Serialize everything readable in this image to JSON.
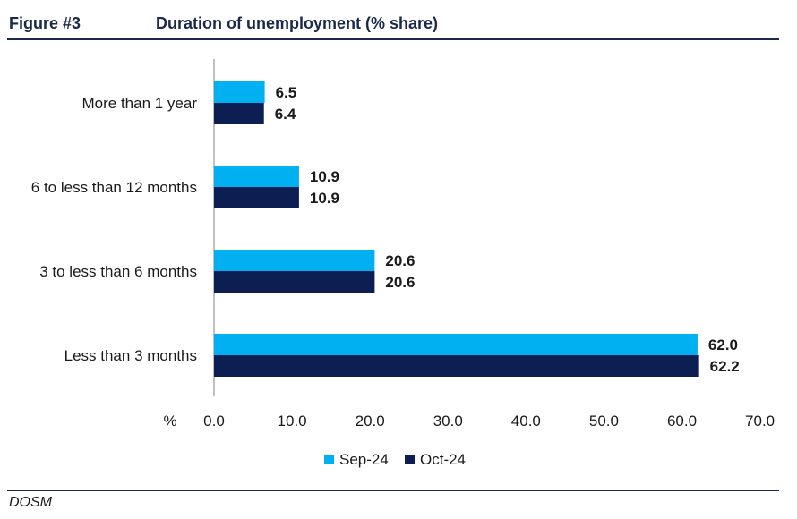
{
  "figure_label": "Figure #3",
  "source": "DOSM",
  "chart_data": {
    "type": "bar",
    "orientation": "horizontal",
    "title": "Duration of unemployment (% share)",
    "xlabel": "%",
    "categories": [
      "More than 1 year",
      "6 to less than 12 months",
      "3 to less than 6 months",
      "Less than 3 months"
    ],
    "series": [
      {
        "name": "Sep-24",
        "color": "#00b0f0",
        "values": [
          6.5,
          10.9,
          20.6,
          62.0
        ]
      },
      {
        "name": "Oct-24",
        "color": "#0d1f52",
        "values": [
          6.4,
          10.9,
          20.6,
          62.2
        ]
      }
    ],
    "xlim": [
      0,
      70
    ],
    "xticks": [
      "0.0",
      "10.0",
      "20.0",
      "30.0",
      "40.0",
      "50.0",
      "60.0",
      "70.0"
    ],
    "grid": false,
    "legend": "bottom"
  }
}
